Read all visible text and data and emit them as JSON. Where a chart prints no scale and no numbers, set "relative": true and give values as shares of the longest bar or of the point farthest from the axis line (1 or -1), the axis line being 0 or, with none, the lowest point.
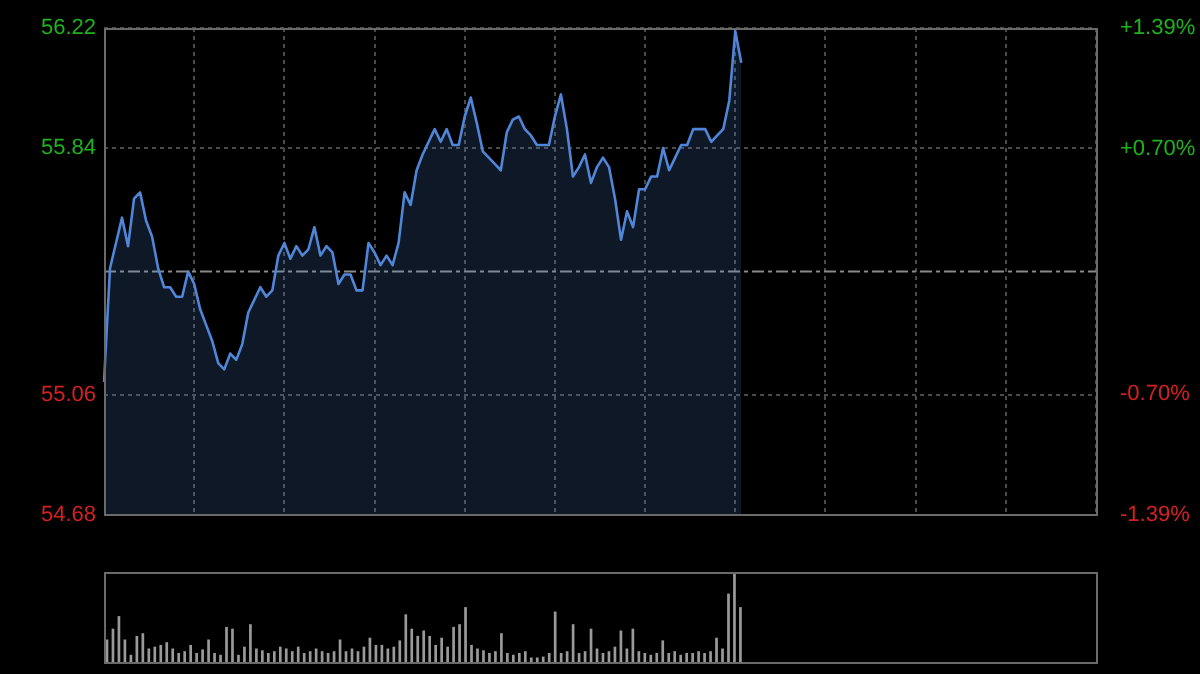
{
  "chart_data": [
    {
      "type": "area",
      "categories": [
        null,
        null,
        null,
        null,
        null,
        null,
        null,
        null,
        null,
        null,
        null,
        null,
        null,
        null,
        null,
        null,
        null,
        null,
        null,
        null,
        null,
        null,
        null,
        null,
        null,
        null,
        null,
        null,
        null,
        null,
        null,
        null,
        null,
        null,
        null,
        null,
        null,
        null,
        null,
        null,
        null,
        null,
        null,
        null,
        null,
        null,
        null,
        null,
        null,
        null,
        null,
        null,
        null,
        null,
        null,
        null,
        null,
        null,
        null,
        null,
        null,
        null,
        null,
        null,
        null,
        null,
        null,
        null,
        null,
        null,
        null,
        null,
        null,
        null,
        null,
        null,
        null,
        null,
        null,
        null,
        null,
        null,
        null,
        null,
        null,
        null,
        null,
        null,
        null,
        null,
        null,
        null,
        null,
        null,
        null,
        null,
        null,
        null,
        null,
        null,
        null,
        null,
        null,
        null,
        null,
        null,
        null,
        null,
        null,
        null,
        null,
        null,
        null,
        null,
        null,
        null,
        null,
        null,
        null,
        null,
        null,
        null,
        null,
        null,
        null,
        null,
        null,
        null,
        null,
        null,
        null,
        null,
        null,
        null,
        null,
        null,
        null,
        null,
        null,
        null,
        null,
        null,
        null,
        null,
        null,
        null,
        null,
        null,
        null,
        null,
        null,
        null,
        null,
        null,
        null,
        null,
        null,
        null,
        null,
        null,
        null,
        null,
        null,
        null,
        null,
        null
      ],
      "series": [
        {
          "color": "#4f86d8",
          "values": [
            55.1,
            55.46,
            55.54,
            55.62,
            55.53,
            55.68,
            55.7,
            55.61,
            55.56,
            55.46,
            55.4,
            55.4,
            55.37,
            55.37,
            55.45,
            55.41,
            55.33,
            55.28,
            55.23,
            55.16,
            55.14,
            55.19,
            55.17,
            55.22,
            55.32,
            55.36,
            55.4,
            55.37,
            55.39,
            55.5,
            55.54,
            55.49,
            55.53,
            55.5,
            55.52,
            55.59,
            55.5,
            55.53,
            55.51,
            55.41,
            55.44,
            55.44,
            55.39,
            55.39,
            55.54,
            55.51,
            55.47,
            55.5,
            55.47,
            55.54,
            55.7,
            55.66,
            55.77,
            55.82,
            55.86,
            55.9,
            55.86,
            55.9,
            55.85,
            55.85,
            55.94,
            56.0,
            55.92,
            55.83,
            55.81,
            55.79,
            55.77,
            55.89,
            55.93,
            55.94,
            55.9,
            55.88,
            55.85,
            55.85,
            55.85,
            55.94,
            56.01,
            55.9,
            55.75,
            55.78,
            55.82,
            55.73,
            55.78,
            55.81,
            55.78,
            55.68,
            55.55,
            55.64,
            55.59,
            55.71,
            55.71,
            55.75,
            55.75,
            55.84,
            55.77,
            55.81,
            55.85,
            55.85,
            55.9,
            55.9,
            55.9,
            55.86,
            55.88,
            55.9,
            55.99,
            56.21,
            56.11,
            null,
            null,
            null,
            null,
            null,
            null,
            null,
            null,
            null,
            null,
            null,
            null,
            null,
            null,
            null,
            null,
            null,
            null,
            null,
            null,
            null,
            null,
            null,
            null,
            null,
            null,
            null,
            null,
            null,
            null,
            null,
            null,
            null,
            null,
            null,
            null,
            null,
            null,
            null,
            null,
            null,
            null,
            null,
            null,
            null,
            null,
            null,
            null,
            null,
            null,
            null,
            null,
            null,
            null,
            null,
            null,
            null,
            null,
            null
          ]
        }
      ],
      "ylim": [
        54.68,
        56.22
      ],
      "yticks": [
        54.68,
        55.06,
        55.84,
        56.22
      ],
      "y2lim": [
        -1.39,
        1.39
      ],
      "y2ticks": [
        {
          "value": -1.39,
          "label": "-1.39%"
        },
        {
          "value": -0.7,
          "label": "-0.70%"
        },
        {
          "value": 0.7,
          "label": "+0.70%"
        },
        {
          "value": 1.39,
          "label": "+1.39%"
        }
      ],
      "ref_lines": [
        {
          "axis": "y",
          "value": 55.45,
          "line_style": "dashed"
        }
      ],
      "grid": true,
      "legend": false
    },
    {
      "type": "bar",
      "relative": true,
      "categories": [
        null,
        null,
        null,
        null,
        null,
        null,
        null,
        null,
        null,
        null,
        null,
        null,
        null,
        null,
        null,
        null,
        null,
        null,
        null,
        null,
        null,
        null,
        null,
        null,
        null,
        null,
        null,
        null,
        null,
        null,
        null,
        null,
        null,
        null,
        null,
        null,
        null,
        null,
        null,
        null,
        null,
        null,
        null,
        null,
        null,
        null,
        null,
        null,
        null,
        null,
        null,
        null,
        null,
        null,
        null,
        null,
        null,
        null,
        null,
        null,
        null,
        null,
        null,
        null,
        null,
        null,
        null,
        null,
        null,
        null,
        null,
        null,
        null,
        null,
        null,
        null,
        null,
        null,
        null,
        null,
        null,
        null,
        null,
        null,
        null,
        null,
        null,
        null,
        null,
        null,
        null,
        null,
        null,
        null,
        null,
        null,
        null,
        null,
        null,
        null,
        null,
        null,
        null,
        null,
        null,
        null,
        null,
        null,
        null,
        null,
        null,
        null,
        null,
        null,
        null,
        null,
        null,
        null,
        null,
        null,
        null,
        null,
        null,
        null,
        null,
        null,
        null,
        null,
        null,
        null,
        null,
        null,
        null,
        null,
        null,
        null,
        null,
        null,
        null,
        null,
        null,
        null,
        null,
        null,
        null,
        null,
        null,
        null,
        null,
        null,
        null,
        null,
        null,
        null,
        null,
        null,
        null,
        null,
        null,
        null,
        null,
        null,
        null,
        null,
        null,
        null
      ],
      "series": [
        {
          "color": "#9a9a9a",
          "values": [
            0.25,
            0.37,
            0.51,
            0.25,
            0.08,
            0.29,
            0.32,
            0.15,
            0.17,
            0.19,
            0.22,
            0.15,
            0.1,
            0.12,
            0.19,
            0.1,
            0.14,
            0.25,
            0.1,
            0.08,
            0.39,
            0.37,
            0.08,
            0.17,
            0.42,
            0.15,
            0.13,
            0.1,
            0.12,
            0.17,
            0.15,
            0.12,
            0.17,
            0.1,
            0.12,
            0.15,
            0.12,
            0.1,
            0.12,
            0.25,
            0.12,
            0.15,
            0.12,
            0.17,
            0.27,
            0.19,
            0.19,
            0.15,
            0.17,
            0.24,
            0.53,
            0.37,
            0.29,
            0.35,
            0.29,
            0.19,
            0.27,
            0.17,
            0.39,
            0.42,
            0.61,
            0.19,
            0.15,
            0.13,
            0.1,
            0.12,
            0.32,
            0.1,
            0.08,
            0.1,
            0.12,
            0.05,
            0.05,
            0.06,
            0.1,
            0.56,
            0.1,
            0.12,
            0.42,
            0.1,
            0.12,
            0.37,
            0.15,
            0.1,
            0.12,
            0.17,
            0.35,
            0.15,
            0.37,
            0.12,
            0.1,
            0.08,
            0.1,
            0.24,
            0.1,
            0.12,
            0.08,
            0.1,
            0.1,
            0.12,
            0.1,
            0.12,
            0.27,
            0.15,
            0.76,
            1,
            0.61,
            null,
            null,
            null,
            null,
            null,
            null,
            null,
            null,
            null,
            null,
            null,
            null,
            null,
            null,
            null,
            null,
            null,
            null,
            null,
            null,
            null,
            null,
            null,
            null,
            null,
            null,
            null,
            null,
            null,
            null,
            null,
            null,
            null,
            null,
            null,
            null,
            null,
            null,
            null,
            null,
            null,
            null,
            null,
            null,
            null,
            null,
            null,
            null,
            null,
            null,
            null,
            null,
            null,
            null,
            null,
            null,
            null,
            null,
            null
          ]
        }
      ],
      "legend": false
    }
  ]
}
